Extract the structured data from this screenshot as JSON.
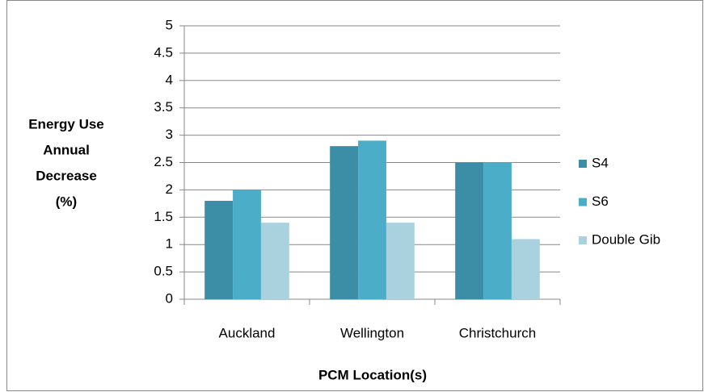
{
  "chart_data": {
    "type": "bar",
    "categories": [
      "Auckland",
      "Wellington",
      "Christchurch"
    ],
    "series": [
      {
        "name": "S4",
        "color": "#3b8ea6",
        "values": [
          1.8,
          2.8,
          2.5
        ]
      },
      {
        "name": "S6",
        "color": "#4badc7",
        "values": [
          2.0,
          2.9,
          2.5
        ]
      },
      {
        "name": "Double Gib",
        "color": "#a9d2de",
        "values": [
          1.4,
          1.4,
          1.1
        ]
      }
    ],
    "ylabel": [
      "Energy Use",
      "Annual",
      "Decrease",
      "(%)"
    ],
    "xlabel": "PCM Location(s)",
    "ylim": [
      0,
      5
    ],
    "yticks": [
      0,
      0.5,
      1,
      1.5,
      2,
      2.5,
      3,
      3.5,
      4,
      4.5,
      5
    ],
    "grid": true,
    "legend": "right"
  }
}
